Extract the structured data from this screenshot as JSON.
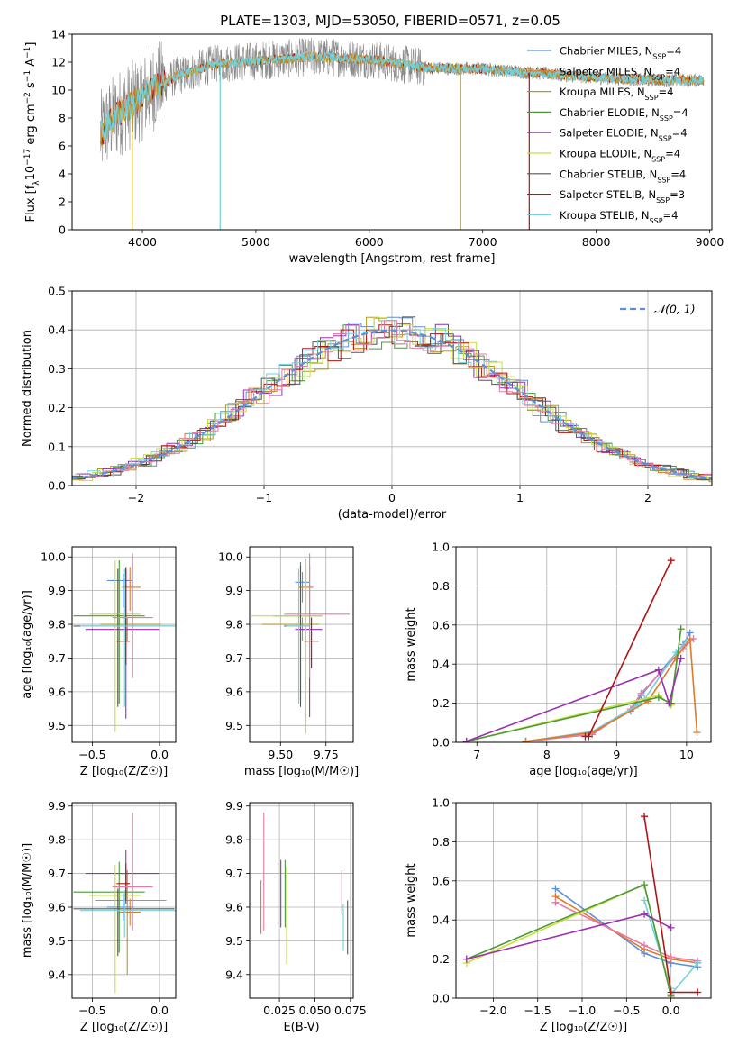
{
  "figure": {
    "title": "PLATE=1303, MJD=53050, FIBERID=0571, z=0.05"
  },
  "colors": {
    "cm": "#5b8fe0",
    "sm": "#e07a24",
    "km": "#b49a26",
    "ce": "#4a9a3a",
    "se": "#9b2fb0",
    "ke": "#c9df3a",
    "cs": "#555555",
    "ss": "#b01414",
    "ks": "#72d0dc",
    "pink": "#e87aa8",
    "gray": "#888888"
  },
  "chart_data": [
    {
      "id": "spectrum",
      "type": "line",
      "ylabel_html": "Flux [f<tspan baseline-shift=\"sub\" font-size=\"9\">λ</tspan>10<tspan baseline-shift=\"super\" font-size=\"9\">−17</tspan> erg cm<tspan baseline-shift=\"super\" font-size=\"9\">−2</tspan> s<tspan baseline-shift=\"super\" font-size=\"9\">−1</tspan> A<tspan baseline-shift=\"super\" font-size=\"9\">−1</tspan>]",
      "xlabel": "wavelength [Angstrom, rest frame]",
      "xlim": [
        3380,
        9020
      ],
      "ylim": [
        0,
        14
      ],
      "xticks": [
        4000,
        5000,
        6000,
        7000,
        8000,
        9000
      ],
      "yticks": [
        0,
        2,
        4,
        6,
        8,
        10,
        12,
        14
      ],
      "grid": false,
      "continuum": {
        "x": [
          3630,
          3700,
          3800,
          3900,
          4000,
          4100,
          4200,
          4300,
          4400,
          4500,
          4600,
          4700,
          4800,
          5000,
          5200,
          5500,
          6000,
          6500,
          7000,
          7500,
          8000,
          8500,
          8950
        ],
        "y": [
          6.8,
          7.6,
          8.4,
          8.9,
          9.5,
          10.2,
          10.5,
          11.0,
          11.2,
          11.5,
          11.8,
          11.9,
          12.0,
          12.1,
          12.2,
          12.4,
          12.2,
          11.6,
          11.5,
          11.2,
          10.9,
          10.7,
          10.7
        ]
      },
      "dips": [
        {
          "x": 3910,
          "y": 0,
          "series": "km"
        },
        {
          "x": 4685,
          "y": 0,
          "series": "ks"
        },
        {
          "x": 6805,
          "y": 0,
          "series": "km"
        },
        {
          "x": 7410,
          "y": 0,
          "series": "ss"
        }
      ],
      "legend_loc": "upper right",
      "legend": [
        {
          "label": "Chabrier MILES, N",
          "sub": "SSP",
          "tail": "=4",
          "color": "cm"
        },
        {
          "label": "Salpeter MILES, N",
          "sub": "SSP",
          "tail": "=4",
          "color": "sm"
        },
        {
          "label": "Kroupa MILES, N",
          "sub": "SSP",
          "tail": "=4",
          "color": "km"
        },
        {
          "label": "Chabrier ELODIE, N",
          "sub": "SSP",
          "tail": "=4",
          "color": "ce"
        },
        {
          "label": "Salpeter ELODIE, N",
          "sub": "SSP",
          "tail": "=4",
          "color": "se"
        },
        {
          "label": "Kroupa ELODIE, N",
          "sub": "SSP",
          "tail": "=4",
          "color": "ke"
        },
        {
          "label": "Chabrier STELIB, N",
          "sub": "SSP",
          "tail": "=4",
          "color": "cs"
        },
        {
          "label": "Salpeter STELIB, N",
          "sub": "SSP",
          "tail": "=3",
          "color": "ss"
        },
        {
          "label": "Kroupa STELIB, N",
          "sub": "SSP",
          "tail": "=4",
          "color": "ks"
        }
      ]
    },
    {
      "id": "residuals",
      "type": "histogram",
      "xlabel": "(data-model)/error",
      "ylabel": "Normed distribution",
      "xlim": [
        -2.5,
        2.5
      ],
      "ylim": [
        0,
        0.5
      ],
      "xticks": [
        -2,
        -1,
        0,
        1,
        2
      ],
      "yticks": [
        0.0,
        0.1,
        0.2,
        0.3,
        0.4,
        0.5
      ],
      "grid": true,
      "bin_width": 0.1,
      "series_colors": [
        "cm",
        "sm",
        "km",
        "ce",
        "se",
        "ke",
        "cs",
        "ss",
        "ks",
        "pink"
      ],
      "gaussian": {
        "label": "𝒩(0, 1)",
        "color": "cm",
        "mean": 0,
        "sigma": 1
      },
      "legend_loc": "upper right"
    },
    {
      "id": "age_vs_Z",
      "type": "errorbar",
      "xlabel": "Z [log₁₀(Z/Z☉)]",
      "ylabel": "age  [log₁₀(age/yr)]",
      "xlim": [
        -0.65,
        0.12
      ],
      "ylim": [
        9.45,
        10.03
      ],
      "xticks": [
        -0.5,
        0.0
      ],
      "xticklabels": [
        "−0.5",
        "0.0"
      ],
      "yticks": [
        9.5,
        9.6,
        9.7,
        9.8,
        9.9,
        10.0
      ],
      "grid": true,
      "points": [
        {
          "x": -0.27,
          "y": 9.93,
          "xlo": 0.12,
          "xhi": 0.07,
          "ylo": 0.08,
          "yhi": 0.02,
          "color": "cm"
        },
        {
          "x": -0.22,
          "y": 9.91,
          "xlo": 0.06,
          "xhi": 0.08,
          "ylo": 0.07,
          "yhi": 0.06,
          "color": "sm"
        },
        {
          "x": -0.24,
          "y": 9.8,
          "xlo": 0.2,
          "xhi": 0.25,
          "ylo": 0.05,
          "yhi": 0.02,
          "color": "km"
        },
        {
          "x": -0.3,
          "y": 9.825,
          "xlo": 0.34,
          "xhi": 0.19,
          "ylo": 0.26,
          "yhi": 0.165,
          "color": "ce"
        },
        {
          "x": -0.25,
          "y": 9.785,
          "xlo": 0.3,
          "xhi": 0.25,
          "ylo": 0.265,
          "yhi": 0.18,
          "color": "se"
        },
        {
          "x": -0.33,
          "y": 9.83,
          "xlo": 0.19,
          "xhi": 0.19,
          "ylo": 0.35,
          "yhi": 0.16,
          "color": "ke"
        },
        {
          "x": -0.31,
          "y": 9.795,
          "xlo": 0.33,
          "xhi": 0.42,
          "ylo": 0.24,
          "yhi": 0.17,
          "color": "cs"
        },
        {
          "x": -0.25,
          "y": 9.75,
          "xlo": 0.07,
          "xhi": 0.03,
          "ylo": 0.07,
          "yhi": 0.22,
          "color": "ss"
        },
        {
          "x": -0.26,
          "y": 9.795,
          "xlo": 0.33,
          "xhi": 0.42,
          "ylo": 0.24,
          "yhi": 0.17,
          "color": "ks"
        },
        {
          "x": -0.2,
          "y": 9.82,
          "xlo": 0.15,
          "xhi": 0.15,
          "ylo": 0.18,
          "yhi": 0.19,
          "color": "pink"
        }
      ]
    },
    {
      "id": "age_vs_mass",
      "type": "errorbar",
      "xlabel": "mass [log₁₀(M/M☉)]",
      "ylabel": "",
      "xlim": [
        9.33,
        9.9
      ],
      "ylim": [
        9.45,
        10.03
      ],
      "xticks": [
        9.5,
        9.75
      ],
      "xticklabels": [
        "9.50",
        "9.75"
      ],
      "yticks": [
        9.5,
        9.6,
        9.7,
        9.8,
        9.9,
        10.0
      ],
      "grid": true,
      "points": [
        {
          "x": 9.62,
          "y": 9.925,
          "xlo": 0.04,
          "xhi": 0.04,
          "ylo": 0.06,
          "yhi": 0.03,
          "color": "cm"
        },
        {
          "x": 9.64,
          "y": 9.91,
          "xlo": 0.04,
          "xhi": 0.04,
          "ylo": 0.07,
          "yhi": 0.06,
          "color": "sm"
        },
        {
          "x": 9.62,
          "y": 9.8,
          "xlo": 0.22,
          "xhi": 0.09,
          "ylo": 0.05,
          "yhi": 0.02,
          "color": "km"
        },
        {
          "x": 9.61,
          "y": 9.825,
          "xlo": 0.15,
          "xhi": 0.12,
          "ylo": 0.25,
          "yhi": 0.16,
          "color": "ce"
        },
        {
          "x": 9.66,
          "y": 9.785,
          "xlo": 0.08,
          "xhi": 0.07,
          "ylo": 0.26,
          "yhi": 0.19,
          "color": "se"
        },
        {
          "x": 9.64,
          "y": 9.825,
          "xlo": 0.3,
          "xhi": 0.09,
          "ylo": 0.35,
          "yhi": 0.17,
          "color": "ke"
        },
        {
          "x": 9.61,
          "y": 9.795,
          "xlo": 0.09,
          "xhi": 0.05,
          "ylo": 0.24,
          "yhi": 0.18,
          "color": "cs"
        },
        {
          "x": 9.67,
          "y": 9.75,
          "xlo": 0.04,
          "xhi": 0.04,
          "ylo": 0.08,
          "yhi": 0.07,
          "color": "ss"
        },
        {
          "x": 9.6,
          "y": 9.795,
          "xlo": 0.07,
          "xhi": 0.06,
          "ylo": 0.23,
          "yhi": 0.17,
          "color": "ks"
        },
        {
          "x": 9.66,
          "y": 9.83,
          "xlo": 0.14,
          "xhi": 0.22,
          "ylo": 0.19,
          "yhi": 0.18,
          "color": "pink"
        }
      ]
    },
    {
      "id": "weight_vs_age",
      "type": "line",
      "xlabel": "age  [log₁₀(age/yr)]",
      "ylabel": "mass weight",
      "xlim": [
        6.7,
        10.35
      ],
      "ylim": [
        0,
        1.0
      ],
      "xticks": [
        7,
        8,
        9,
        10
      ],
      "yticks": [
        0.0,
        0.2,
        0.4,
        0.6,
        0.8,
        1.0
      ],
      "grid": true,
      "series": [
        {
          "color": "cm",
          "x": [
            7.7,
            8.65,
            9.2,
            9.35,
            9.95,
            10.05
          ],
          "y": [
            0.005,
            0.05,
            0.16,
            0.24,
            0.5,
            0.56
          ]
        },
        {
          "color": "pink",
          "x": [
            7.7,
            8.65,
            9.2,
            9.35,
            9.95,
            10.1
          ],
          "y": [
            0.005,
            0.04,
            0.17,
            0.25,
            0.48,
            0.53
          ]
        },
        {
          "color": "ks",
          "x": [
            7.7,
            8.65,
            9.3,
            9.4,
            9.85,
            10.0
          ],
          "y": [
            0.005,
            0.055,
            0.19,
            0.22,
            0.46,
            0.52
          ]
        },
        {
          "color": "sm",
          "x": [
            7.7,
            8.65,
            9.45,
            9.85,
            10.05,
            10.15
          ],
          "y": [
            0.005,
            0.05,
            0.21,
            0.43,
            0.53,
            0.05
          ]
        },
        {
          "color": "ke",
          "x": [
            6.85,
            9.6,
            9.78,
            9.92
          ],
          "y": [
            0.005,
            0.24,
            0.19,
            0.58
          ]
        },
        {
          "color": "ce",
          "x": [
            6.85,
            9.6,
            9.78,
            9.92
          ],
          "y": [
            0.005,
            0.23,
            0.2,
            0.58
          ]
        },
        {
          "color": "se",
          "x": [
            6.85,
            9.6,
            9.75,
            9.92
          ],
          "y": [
            0.005,
            0.37,
            0.2,
            0.43
          ]
        },
        {
          "color": "ss",
          "x": [
            8.55,
            8.6,
            9.78
          ],
          "y": [
            0.03,
            0.03,
            0.93
          ]
        }
      ]
    },
    {
      "id": "mass_vs_Z",
      "type": "errorbar",
      "xlabel": "Z [log₁₀(Z/Z☉)]",
      "ylabel": "mass [log₁₀(M/M☉)]",
      "xlim": [
        -0.65,
        0.12
      ],
      "ylim": [
        9.33,
        9.91
      ],
      "xticks": [
        -0.5,
        0.0
      ],
      "xticklabels": [
        "−0.5",
        "0.0"
      ],
      "yticks": [
        9.4,
        9.5,
        9.6,
        9.7,
        9.8,
        9.9
      ],
      "grid": true,
      "points": [
        {
          "x": -0.27,
          "y": 9.6,
          "xlo": 0.12,
          "xhi": 0.08,
          "ylo": 0.04,
          "yhi": 0.04,
          "color": "cm"
        },
        {
          "x": -0.22,
          "y": 9.585,
          "xlo": 0.08,
          "xhi": 0.08,
          "ylo": 0.04,
          "yhi": 0.04,
          "color": "sm"
        },
        {
          "x": -0.24,
          "y": 9.62,
          "xlo": 0.24,
          "xhi": 0.29,
          "ylo": 0.22,
          "yhi": 0.09,
          "color": "km"
        },
        {
          "x": -0.3,
          "y": 9.645,
          "xlo": 0.34,
          "xhi": 0.19,
          "ylo": 0.18,
          "yhi": 0.09,
          "color": "ce"
        },
        {
          "x": -0.25,
          "y": 9.7,
          "xlo": 0.3,
          "xhi": 0.25,
          "ylo": 0.09,
          "yhi": 0.07,
          "color": "se"
        },
        {
          "x": -0.33,
          "y": 9.635,
          "xlo": 0.19,
          "xhi": 0.19,
          "ylo": 0.29,
          "yhi": 0.09,
          "color": "ke"
        },
        {
          "x": -0.31,
          "y": 9.595,
          "xlo": 0.33,
          "xhi": 0.42,
          "ylo": 0.14,
          "yhi": 0.06,
          "color": "cs"
        },
        {
          "x": -0.25,
          "y": 9.67,
          "xlo": 0.07,
          "xhi": 0.03,
          "ylo": 0.05,
          "yhi": 0.06,
          "color": "ss"
        },
        {
          "x": -0.26,
          "y": 9.59,
          "xlo": 0.33,
          "xhi": 0.42,
          "ylo": 0.08,
          "yhi": 0.06,
          "color": "ks"
        },
        {
          "x": -0.2,
          "y": 9.66,
          "xlo": 0.15,
          "xhi": 0.15,
          "ylo": 0.13,
          "yhi": 0.22,
          "color": "pink"
        }
      ]
    },
    {
      "id": "mass_vs_EBV",
      "type": "errorbar",
      "xlabel": "E(B-V)",
      "ylabel": "",
      "xlim": [
        0.004,
        0.077
      ],
      "ylim": [
        9.33,
        9.91
      ],
      "xticks": [
        0.025,
        0.05,
        0.075
      ],
      "xticklabels": [
        "0.025",
        "0.050",
        "0.075"
      ],
      "yticks": [
        9.4,
        9.5,
        9.6,
        9.7,
        9.8,
        9.9
      ],
      "grid": true,
      "points": [
        {
          "x": 0.012,
          "y": 9.6,
          "xlo": 0,
          "xhi": 0,
          "ylo": 0.08,
          "yhi": 0.08,
          "color": "sm"
        },
        {
          "x": 0.014,
          "y": 9.7,
          "xlo": 0,
          "xhi": 0,
          "ylo": 0.17,
          "yhi": 0.18,
          "color": "pink"
        },
        {
          "x": 0.026,
          "y": 9.66,
          "xlo": 0,
          "xhi": 0,
          "ylo": 0.12,
          "yhi": 0.08,
          "color": "se"
        },
        {
          "x": 0.029,
          "y": 9.66,
          "xlo": 0,
          "xhi": 0,
          "ylo": 0.12,
          "yhi": 0.08,
          "color": "ce"
        },
        {
          "x": 0.03,
          "y": 9.57,
          "xlo": 0,
          "xhi": 0,
          "ylo": 0.14,
          "yhi": 0.15,
          "color": "ke"
        },
        {
          "x": 0.069,
          "y": 9.64,
          "xlo": 0,
          "xhi": 0,
          "ylo": 0.06,
          "yhi": 0.07,
          "color": "ss"
        },
        {
          "x": 0.07,
          "y": 9.54,
          "xlo": 0,
          "xhi": 0,
          "ylo": 0.07,
          "yhi": 0.07,
          "color": "ks"
        },
        {
          "x": 0.073,
          "y": 9.54,
          "xlo": 0,
          "xhi": 0,
          "ylo": 0.08,
          "yhi": 0.08,
          "color": "cs"
        }
      ]
    },
    {
      "id": "weight_vs_Z",
      "type": "line",
      "xlabel": "Z [log₁₀(Z/Z☉)]",
      "ylabel": "mass weight",
      "xlim": [
        -2.42,
        0.45
      ],
      "ylim": [
        0,
        1.0
      ],
      "xticks": [
        -2.0,
        -1.5,
        -1.0,
        -0.5,
        0.0
      ],
      "xticklabels": [
        "−2.0",
        "−1.5",
        "−1.0",
        "−0.5",
        "0.0"
      ],
      "yticks": [
        0.0,
        0.2,
        0.4,
        0.6,
        0.8,
        1.0
      ],
      "grid": true,
      "series": [
        {
          "color": "cm",
          "x": [
            -1.3,
            -0.3,
            0.0,
            0.3
          ],
          "y": [
            0.56,
            0.23,
            0.18,
            0.16
          ]
        },
        {
          "color": "sm",
          "x": [
            -1.3,
            -0.3,
            0.0,
            0.3
          ],
          "y": [
            0.52,
            0.25,
            0.2,
            0.18
          ]
        },
        {
          "color": "pink",
          "x": [
            -1.3,
            -0.3,
            0.0,
            0.3
          ],
          "y": [
            0.49,
            0.27,
            0.21,
            0.19
          ]
        },
        {
          "color": "ks",
          "x": [
            -0.3,
            0.0,
            0.0,
            0.3
          ],
          "y": [
            0.5,
            0.05,
            0.02,
            0.18
          ]
        },
        {
          "color": "ke",
          "x": [
            -2.3,
            -0.3,
            0.0
          ],
          "y": [
            0.18,
            0.58,
            0.02
          ]
        },
        {
          "color": "ce",
          "x": [
            -2.3,
            -0.3,
            0.0
          ],
          "y": [
            0.2,
            0.58,
            0.01
          ]
        },
        {
          "color": "se",
          "x": [
            -2.3,
            -0.3,
            0.0
          ],
          "y": [
            0.2,
            0.43,
            0.36
          ]
        },
        {
          "color": "ss",
          "x": [
            -0.3,
            0.0,
            0.3
          ],
          "y": [
            0.93,
            0.03,
            0.03
          ]
        }
      ]
    }
  ]
}
